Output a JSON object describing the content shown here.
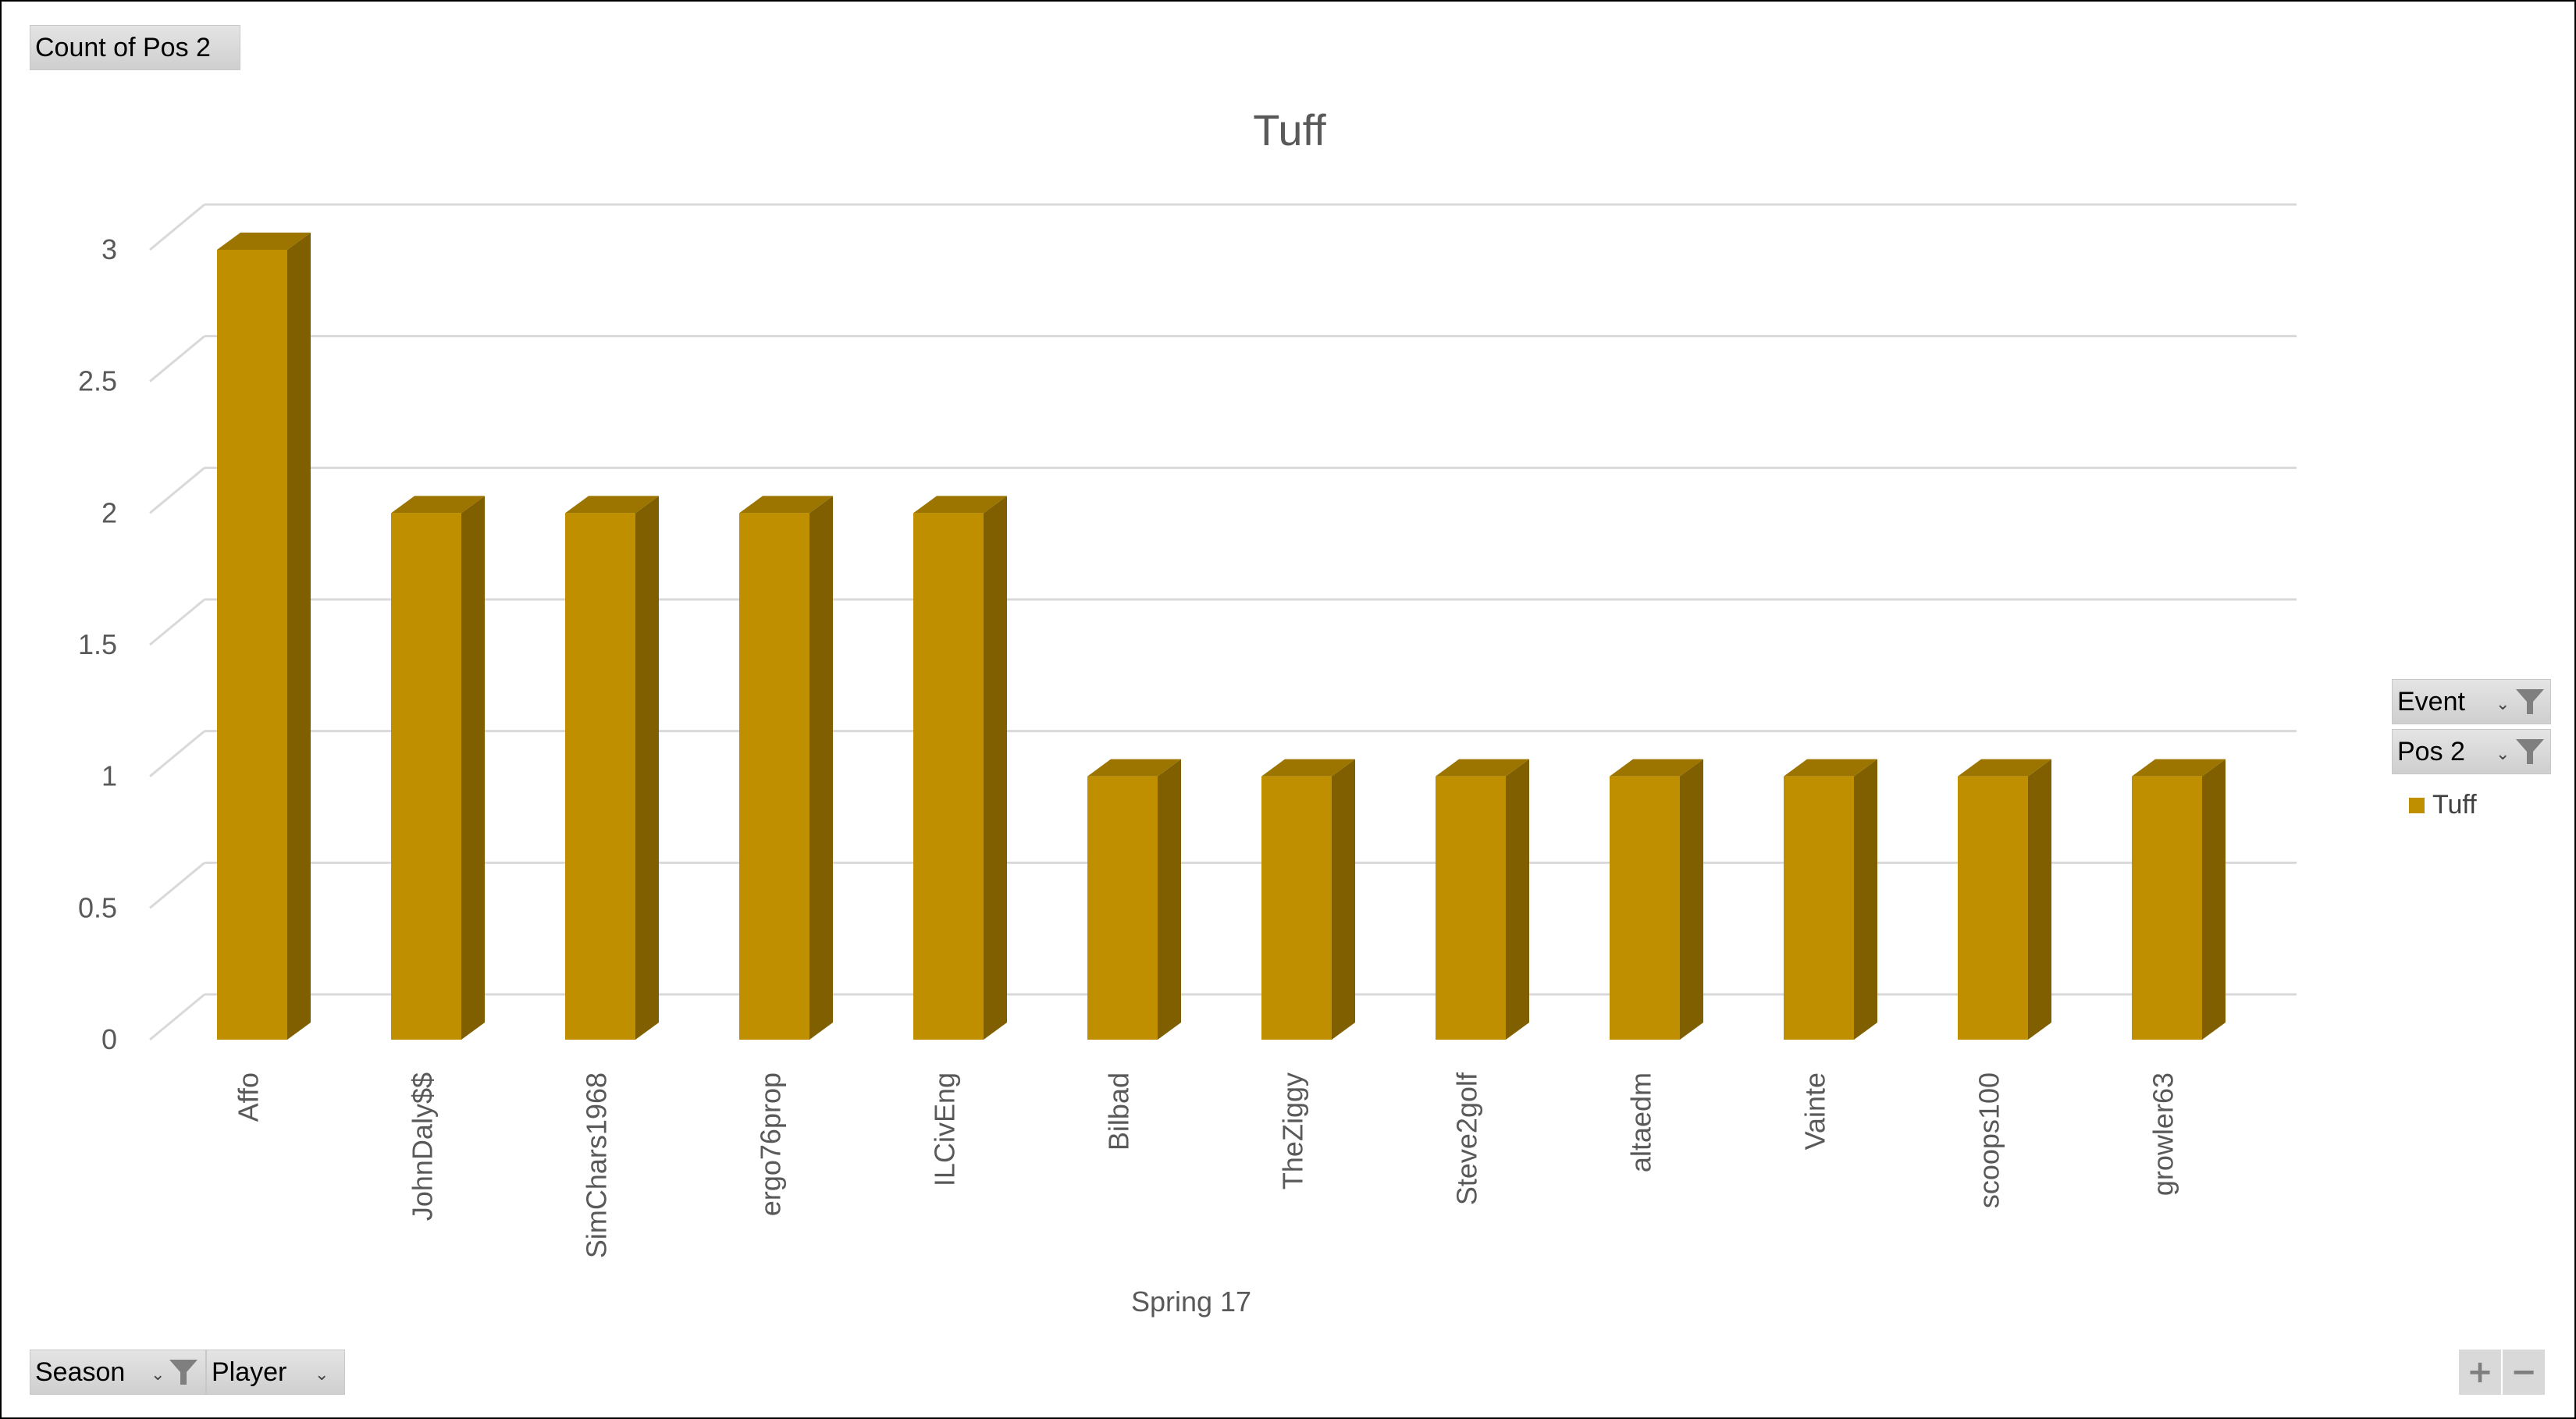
{
  "value_field_button": {
    "label": "Count of Pos 2"
  },
  "filter_buttons": [
    {
      "label": "Event",
      "icon": "filter-icon"
    },
    {
      "label": "Pos 2",
      "icon": "filter-icon"
    }
  ],
  "axis_field_buttons": [
    {
      "label": "Season",
      "icon": "filter-icon"
    },
    {
      "label": "Player",
      "icon": "dropdown-icon"
    }
  ],
  "zoom_buttons": {
    "expand": "+",
    "collapse": "−"
  },
  "colors": {
    "bar_front": "#bf8f00",
    "bar_side": "#7f5f00",
    "bar_top": "#9c7500",
    "gridline": "#d9d9d9",
    "text": "#595959"
  },
  "chart_data": {
    "type": "bar",
    "style": "3d-column",
    "title": "Tuff",
    "categories": [
      "Affo",
      "JohnDaly$$",
      "SimChars1968",
      "ergo76prop",
      "ILCivEng",
      "Bilbad",
      "TheZiggy",
      "Steve2golf",
      "altaedm",
      "Vainte",
      "scoops100",
      "growler63"
    ],
    "group_label": "Spring 17",
    "series": [
      {
        "name": "Tuff",
        "values": [
          3,
          2,
          2,
          2,
          2,
          1,
          1,
          1,
          1,
          1,
          1,
          1
        ]
      }
    ],
    "yticks": [
      "0",
      "0.5",
      "1",
      "1.5",
      "2",
      "2.5",
      "3"
    ],
    "ylim": [
      0,
      3
    ],
    "grid": true,
    "legend_position": "right"
  }
}
